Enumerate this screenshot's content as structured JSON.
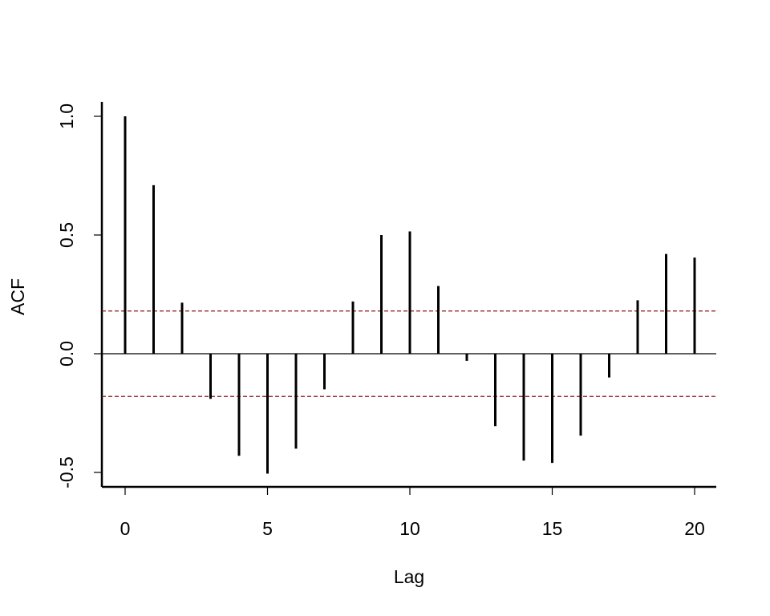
{
  "chart_data": {
    "type": "bar",
    "title": "",
    "xlabel": "Lag",
    "ylabel": "ACF",
    "xlim": [
      -0.8,
      20.8
    ],
    "ylim": [
      -0.56,
      1.06
    ],
    "x_ticks": [
      0,
      5,
      10,
      15,
      20
    ],
    "x_tick_labels": [
      "0",
      "5",
      "10",
      "15",
      "20"
    ],
    "y_ticks": [
      -0.5,
      0.0,
      0.5,
      1.0
    ],
    "y_tick_labels": [
      "-0.5",
      "0.0",
      "0.5",
      "1.0"
    ],
    "lags": [
      0,
      1,
      2,
      3,
      4,
      5,
      6,
      7,
      8,
      9,
      10,
      11,
      12,
      13,
      14,
      15,
      16,
      17,
      18,
      19,
      20
    ],
    "acf": [
      1.0,
      0.71,
      0.215,
      -0.19,
      -0.43,
      -0.505,
      -0.4,
      -0.15,
      0.22,
      0.5,
      0.515,
      0.285,
      -0.03,
      -0.305,
      -0.45,
      -0.46,
      -0.345,
      -0.1,
      0.225,
      0.42,
      0.405
    ],
    "confidence_bounds": [
      0.18,
      -0.18
    ],
    "zero_line": true,
    "grid": false,
    "colors": {
      "bars": "#000000",
      "confidence_lines": "#8b1a1a",
      "axes": "#000000"
    }
  }
}
